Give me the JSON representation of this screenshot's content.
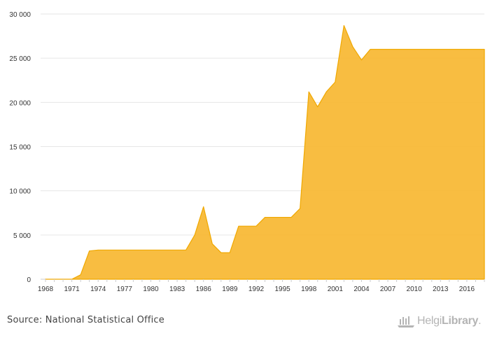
{
  "chart_data": {
    "type": "area",
    "x": [
      1968,
      1969,
      1970,
      1971,
      1972,
      1973,
      1974,
      1975,
      1976,
      1977,
      1978,
      1979,
      1980,
      1981,
      1982,
      1983,
      1984,
      1985,
      1986,
      1987,
      1988,
      1989,
      1990,
      1991,
      1992,
      1993,
      1994,
      1995,
      1996,
      1997,
      1998,
      1999,
      2000,
      2001,
      2002,
      2003,
      2004,
      2005,
      2006,
      2007,
      2008,
      2009,
      2010,
      2011,
      2012,
      2013,
      2014,
      2015,
      2016,
      2017,
      2018
    ],
    "series": [
      {
        "color": "#f7b731",
        "values": [
          0,
          0,
          0,
          0,
          500,
          3200,
          3300,
          3300,
          3300,
          3300,
          3300,
          3300,
          3300,
          3300,
          3300,
          3300,
          3300,
          5000,
          8200,
          4000,
          3000,
          3000,
          6000,
          6000,
          6000,
          7000,
          7000,
          7000,
          7000,
          8000,
          21200,
          19500,
          21200,
          22300,
          28700,
          26300,
          24800,
          26000,
          26000,
          26000,
          26000,
          26000,
          26000,
          26000,
          26000,
          26000,
          26000,
          26000,
          26000,
          26000,
          26000
        ]
      }
    ],
    "x_tick_labels": [
      "1968",
      "1971",
      "1974",
      "1977",
      "1980",
      "1983",
      "1986",
      "1989",
      "1992",
      "1995",
      "1998",
      "2001",
      "2004",
      "2007",
      "2010",
      "2013",
      "2016"
    ],
    "y_tick_labels": [
      "0",
      "5 000",
      "10 000",
      "15 000",
      "20 000",
      "25 000",
      "30 000"
    ],
    "y_ticks": [
      0,
      5000,
      10000,
      15000,
      20000,
      25000,
      30000
    ],
    "ylim": [
      0,
      30000
    ],
    "xlim": [
      1968,
      2018
    ],
    "grid": true,
    "title": "",
    "xlabel": "",
    "ylabel": ""
  },
  "footer": {
    "source": "Source: National Statistical Office",
    "brand_regular": "Helgi",
    "brand_bold": "Library",
    "brand_icon": "helgi-library-logo-icon"
  },
  "colors": {
    "area_fill": "#f7b731",
    "area_stroke": "#f0a800",
    "grid": "#e6e6e6",
    "axis": "#cccccc"
  }
}
